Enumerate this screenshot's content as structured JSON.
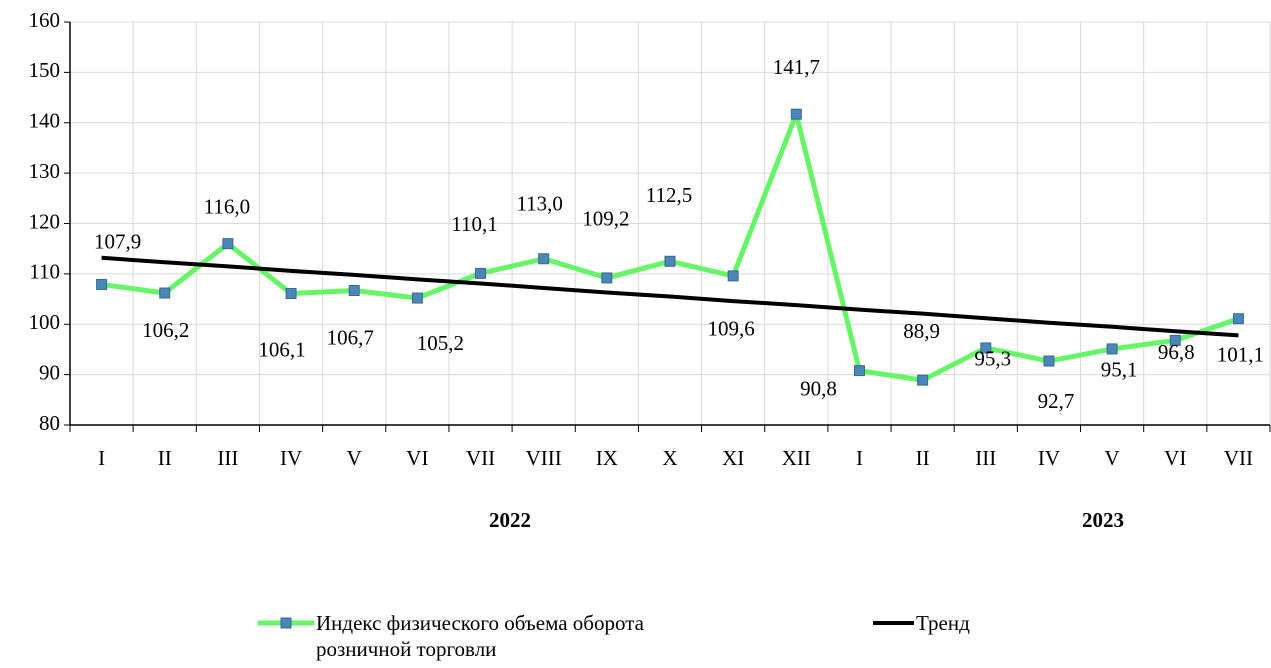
{
  "chart_data": {
    "type": "line",
    "categories": [
      "I",
      "II",
      "III",
      "IV",
      "V",
      "VI",
      "VII",
      "VIII",
      "IX",
      "X",
      "XI",
      "XII",
      "I",
      "II",
      "III",
      "IV",
      "V",
      "VI",
      "VII"
    ],
    "x_group_labels": [
      "2022",
      "2023"
    ],
    "series": [
      {
        "name": "Индекс физического объема оборота розничной торговли",
        "color": "#66f566",
        "marker_color": "#4a86b8",
        "values": [
          107.9,
          106.2,
          116.0,
          106.1,
          106.7,
          105.2,
          110.1,
          113.0,
          109.2,
          112.5,
          109.6,
          141.7,
          90.8,
          88.9,
          95.3,
          92.7,
          95.1,
          96.8,
          101.1
        ],
        "value_labels": [
          "107,9",
          "106,2",
          "116,0",
          "106,1",
          "106,7",
          "105,2",
          "110,1",
          "113,0",
          "109,2",
          "112,5",
          "109,6",
          "141,7",
          "90,8",
          "88,9",
          "95,3",
          "92,7",
          "95,1",
          "96,8",
          "101,1"
        ]
      },
      {
        "name": "Тренд",
        "color": "#000000",
        "values": [
          113.2,
          112.3,
          111.5,
          110.6,
          109.8,
          108.9,
          108.1,
          107.2,
          106.3,
          105.5,
          104.6,
          103.8,
          102.9,
          102.1,
          101.2,
          100.3,
          99.5,
          98.6,
          97.8
        ]
      }
    ],
    "ylim": [
      80,
      160
    ],
    "yticks": [
      80,
      90,
      100,
      110,
      120,
      130,
      140,
      150,
      160
    ],
    "grid": true,
    "legend": "bottom"
  }
}
